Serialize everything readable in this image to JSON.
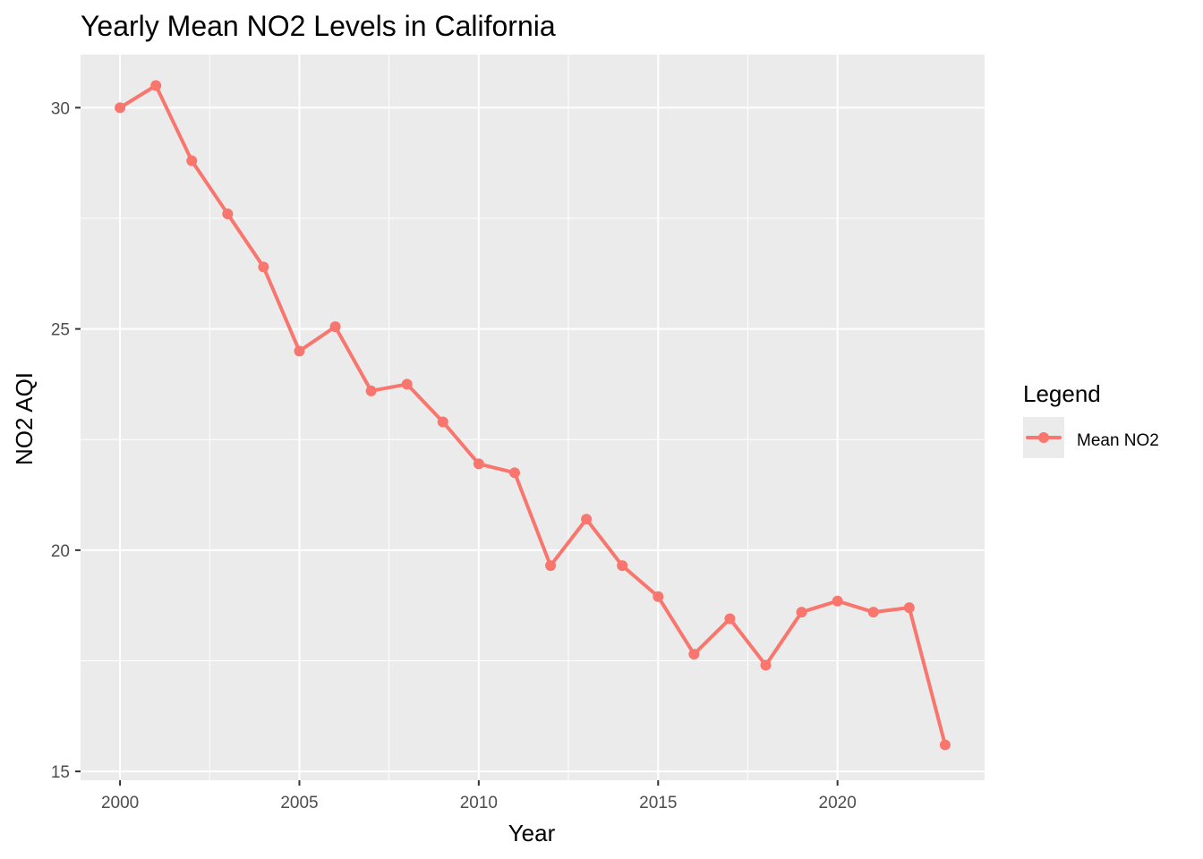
{
  "chart_data": {
    "type": "line",
    "title": "Yearly Mean NO2 Levels in California",
    "xlabel": "Year",
    "ylabel": "NO2 AQI",
    "x": [
      2000,
      2001,
      2002,
      2003,
      2004,
      2005,
      2006,
      2007,
      2008,
      2009,
      2010,
      2011,
      2012,
      2013,
      2014,
      2015,
      2016,
      2017,
      2018,
      2019,
      2020,
      2021,
      2022,
      2023
    ],
    "series": [
      {
        "name": "Mean NO2",
        "color": "#F8766D",
        "values": [
          30.0,
          30.5,
          28.8,
          27.6,
          26.4,
          24.5,
          25.05,
          23.6,
          23.75,
          22.9,
          21.95,
          21.75,
          19.65,
          20.7,
          19.65,
          18.95,
          17.65,
          18.45,
          17.4,
          18.6,
          18.85,
          18.6,
          18.7,
          15.6
        ]
      }
    ],
    "xlim": [
      1998.9,
      2024.1
    ],
    "ylim": [
      14.8,
      31.2
    ],
    "x_ticks": [
      2000,
      2005,
      2010,
      2015,
      2020
    ],
    "x_tick_labels": [
      "2000",
      "2005",
      "2010",
      "2015",
      "2020"
    ],
    "y_ticks": [
      15,
      20,
      25,
      30
    ],
    "y_tick_labels": [
      "15",
      "20",
      "25",
      "30"
    ],
    "grid": true,
    "panel_background": "#EBEBEB",
    "grid_color": "#FFFFFF",
    "legend": {
      "title": "Legend",
      "position": "right",
      "entries": [
        "Mean NO2"
      ]
    }
  }
}
